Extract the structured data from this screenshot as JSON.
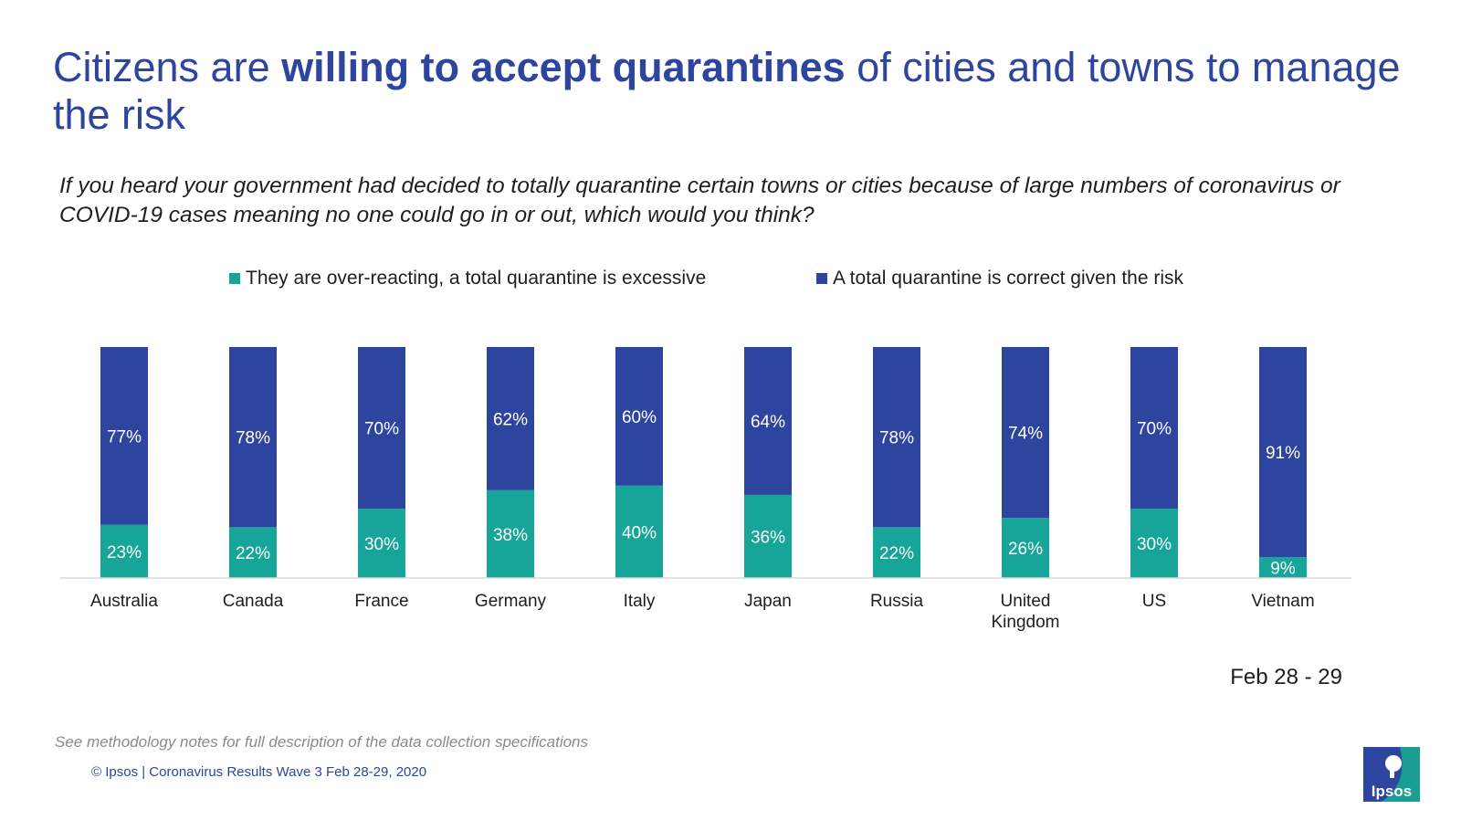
{
  "title": {
    "prefix": "Citizens are ",
    "bold": "willing to accept quarantines",
    "suffix": " of cities and towns to manage the risk"
  },
  "question": "If you heard your government had decided to totally quarantine certain towns or cities because of large numbers of coronavirus or COVID-19 cases meaning no one could go in or out, which would you think?",
  "date_label": "Feb 28 - 29",
  "footnote": "See methodology notes for full description of the data collection specifications",
  "copyright": "© Ipsos | Coronavirus Results Wave 3 Feb 28-29, 2020",
  "logo_text": "Ipsos",
  "colors": {
    "teal": "#17a59a",
    "blue": "#2e45a0",
    "axis": "#d9d9d9",
    "logo": "#1a9e94"
  },
  "chart_data": {
    "type": "bar",
    "stacked": true,
    "categories": [
      "Australia",
      "Canada",
      "France",
      "Germany",
      "Italy",
      "Japan",
      "Russia",
      "United Kingdom",
      "US",
      "Vietnam"
    ],
    "series": [
      {
        "name": "They are over-reacting, a total quarantine is excessive",
        "color": "#17a59a",
        "values": [
          23,
          22,
          30,
          38,
          40,
          36,
          22,
          26,
          30,
          9
        ]
      },
      {
        "name": "A total quarantine is correct given the risk",
        "color": "#2e45a0",
        "values": [
          77,
          78,
          70,
          62,
          60,
          64,
          78,
          74,
          70,
          91
        ]
      }
    ],
    "value_suffix": "%",
    "ylim": [
      0,
      100
    ],
    "legend_position": "top"
  }
}
